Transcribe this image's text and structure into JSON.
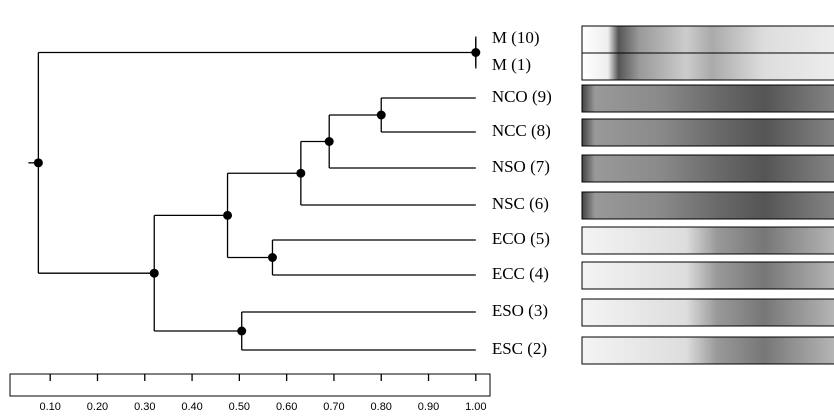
{
  "chart_data": {
    "type": "dendrogram",
    "tree": {
      "value": 0.075,
      "children": [
        {
          "value": 1.0,
          "children": [
            {
              "label": "M (10)"
            },
            {
              "label": "M (1)"
            }
          ]
        },
        {
          "value": 0.32,
          "children": [
            {
              "value": 0.475,
              "children": [
                {
                  "value": 0.63,
                  "children": [
                    {
                      "value": 0.69,
                      "children": [
                        {
                          "value": 0.8,
                          "children": [
                            {
                              "label": "NCO (9)"
                            },
                            {
                              "label": "NCC (8)"
                            }
                          ]
                        },
                        {
                          "label": "NSO (7)"
                        }
                      ]
                    },
                    {
                      "label": "NSC (6)"
                    }
                  ]
                },
                {
                  "value": 0.57,
                  "children": [
                    {
                      "label": "ECO (5)"
                    },
                    {
                      "label": "ECC (4)"
                    }
                  ]
                }
              ]
            },
            {
              "value": 0.505,
              "children": [
                {
                  "label": "ESO (3)"
                },
                {
                  "label": "ESC (2)"
                }
              ]
            }
          ]
        }
      ]
    },
    "xlim": [
      0.015,
      1.03
    ],
    "xticks": [
      {
        "value": 0.1,
        "label": "0.10"
      },
      {
        "value": 0.2,
        "label": "0.20"
      },
      {
        "value": 0.3,
        "label": "0.30"
      },
      {
        "value": 0.4,
        "label": "0.40"
      },
      {
        "value": 0.5,
        "label": "0.50"
      },
      {
        "value": 0.6,
        "label": "0.60"
      },
      {
        "value": 0.7,
        "label": "0.70"
      },
      {
        "value": 0.8,
        "label": "0.80"
      },
      {
        "value": 0.9,
        "label": "0.90"
      },
      {
        "value": 1.0,
        "label": "1.00"
      }
    ],
    "color": "#000000"
  }
}
